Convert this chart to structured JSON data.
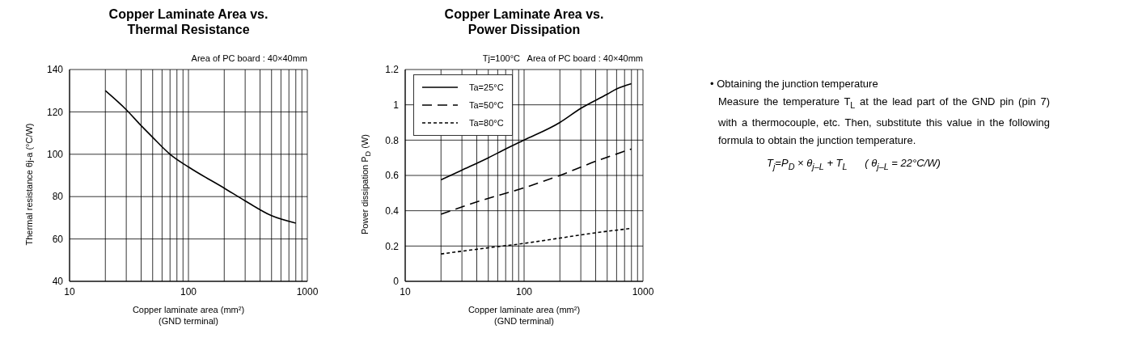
{
  "chart_data": [
    {
      "type": "line",
      "title": "Copper Laminate Area vs.\nThermal Resistance",
      "xlabel": "Copper laminate area (mm²)\n(GND terminal)",
      "ylabel": "Thermal resistance θj-a (°C/W)",
      "annotations": [
        "Area of PC board : 40×40mm"
      ],
      "log": "x",
      "grid": true,
      "xlim": [
        10,
        1000
      ],
      "xticks": [
        10,
        {
          "value": 20,
          "label": null
        },
        {
          "value": 30,
          "label": null
        },
        {
          "value": 40,
          "label": null
        },
        {
          "value": 50,
          "label": null
        },
        {
          "value": 60,
          "label": null
        },
        {
          "value": 70,
          "label": null
        },
        {
          "value": 80,
          "label": null
        },
        {
          "value": 90,
          "label": null
        },
        100,
        {
          "value": 200,
          "label": null
        },
        {
          "value": 300,
          "label": null
        },
        {
          "value": 400,
          "label": null
        },
        {
          "value": 500,
          "label": null
        },
        {
          "value": 600,
          "label": null
        },
        {
          "value": 700,
          "label": null
        },
        {
          "value": 800,
          "label": null
        },
        {
          "value": 900,
          "label": null
        },
        1000
      ],
      "ylim": [
        40,
        140
      ],
      "yticks": [
        40,
        60,
        80,
        100,
        120,
        140
      ],
      "series": [
        {
          "color": "#000000",
          "line_style": "solid",
          "x": [
            20,
            30,
            40,
            50,
            70,
            100,
            200,
            300,
            500,
            800
          ],
          "values": [
            130,
            121,
            113.5,
            108,
            100,
            94,
            84,
            78,
            71,
            67.5
          ]
        }
      ]
    },
    {
      "type": "line",
      "title": "Copper Laminate Area vs.\nPower Dissipation",
      "xlabel": "Copper laminate area (mm²)\n(GND terminal)",
      "ylabel": "Power dissipation P$_{D}$ (W)",
      "annotations": [
        "Tj=100°C   Area of PC board : 40×40mm"
      ],
      "log": "x",
      "grid": true,
      "legend": "top left",
      "xlim": [
        10,
        1000
      ],
      "xticks": [
        10,
        {
          "value": 20,
          "label": null
        },
        {
          "value": 30,
          "label": null
        },
        {
          "value": 40,
          "label": null
        },
        {
          "value": 50,
          "label": null
        },
        {
          "value": 60,
          "label": null
        },
        {
          "value": 70,
          "label": null
        },
        {
          "value": 80,
          "label": null
        },
        {
          "value": 90,
          "label": null
        },
        100,
        {
          "value": 200,
          "label": null
        },
        {
          "value": 300,
          "label": null
        },
        {
          "value": 400,
          "label": null
        },
        {
          "value": 500,
          "label": null
        },
        {
          "value": 600,
          "label": null
        },
        {
          "value": 700,
          "label": null
        },
        {
          "value": 800,
          "label": null
        },
        {
          "value": 900,
          "label": null
        },
        1000
      ],
      "ylim": [
        0,
        1.2
      ],
      "yticks": [
        0,
        0.2,
        0.4,
        0.6,
        0.8,
        1,
        1.2
      ],
      "series": [
        {
          "name": "Ta=25°C",
          "color": "#000000",
          "line_style": "solid",
          "x": [
            20,
            30,
            50,
            70,
            100,
            200,
            300,
            500,
            600,
            800
          ],
          "values": [
            0.575,
            0.63,
            0.7,
            0.75,
            0.8,
            0.9,
            0.98,
            1.06,
            1.09,
            1.12
          ]
        },
        {
          "name": "Ta=50°C",
          "color": "#000000",
          "line_style": "dashed",
          "x": [
            20,
            40,
            100,
            200,
            400,
            800
          ],
          "values": [
            0.38,
            0.45,
            0.53,
            0.6,
            0.68,
            0.75
          ]
        },
        {
          "name": "Ta=80°C",
          "color": "#000000",
          "line_style": "dotted",
          "x": [
            20,
            50,
            100,
            200,
            400,
            800
          ],
          "values": [
            0.155,
            0.19,
            0.215,
            0.245,
            0.275,
            0.3
          ]
        }
      ]
    },
    {
      "type": "other",
      "title": "• Obtaining the junction temperature",
      "annotations": [
        "Measure the temperature T$_{L}$ at the lead part of the GND pin (pin 7) with a thermocouple, etc. Then, substitute this value in the following formula to obtain the junction temperature.",
        "T$_{j}$=P$_{D}$ × θ$_{j–L}$ + T$_{L}$      ( θ$_{j–L}$ = 22°C/W)"
      ]
    }
  ]
}
